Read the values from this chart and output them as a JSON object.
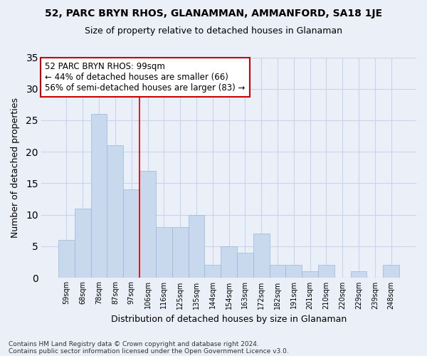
{
  "title": "52, PARC BRYN RHOS, GLANAMMAN, AMMANFORD, SA18 1JE",
  "subtitle": "Size of property relative to detached houses in Glanaman",
  "xlabel": "Distribution of detached houses by size in Glanaman",
  "ylabel": "Number of detached properties",
  "categories": [
    "59sqm",
    "68sqm",
    "78sqm",
    "87sqm",
    "97sqm",
    "106sqm",
    "116sqm",
    "125sqm",
    "135sqm",
    "144sqm",
    "154sqm",
    "163sqm",
    "172sqm",
    "182sqm",
    "191sqm",
    "201sqm",
    "210sqm",
    "220sqm",
    "229sqm",
    "239sqm",
    "248sqm"
  ],
  "values": [
    6,
    11,
    26,
    21,
    14,
    17,
    8,
    8,
    10,
    2,
    5,
    4,
    7,
    2,
    2,
    1,
    2,
    0,
    1,
    0,
    2
  ],
  "bar_color": "#c8d8ed",
  "bar_edge_color": "#9ab8d8",
  "grid_color": "#c8d4e8",
  "background_color": "#eaeff8",
  "annotation_text": "52 PARC BRYN RHOS: 99sqm\n← 44% of detached houses are smaller (66)\n56% of semi-detached houses are larger (83) →",
  "vline_x_index": 4,
  "annotation_box_color": "#ffffff",
  "annotation_border_color": "#cc0000",
  "footnote1": "Contains HM Land Registry data © Crown copyright and database right 2024.",
  "footnote2": "Contains public sector information licensed under the Open Government Licence v3.0.",
  "ylim": [
    0,
    35
  ],
  "yticks": [
    0,
    5,
    10,
    15,
    20,
    25,
    30,
    35
  ]
}
